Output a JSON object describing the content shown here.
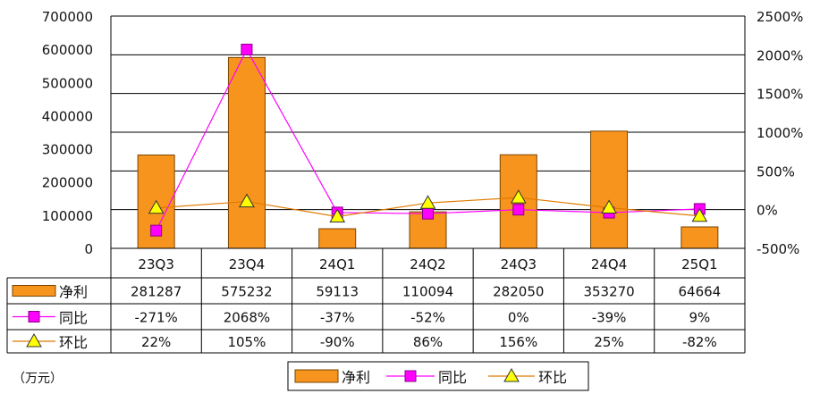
{
  "colors": {
    "bar": "#f7941d",
    "bar_stroke": "#7a4400",
    "yoy": "#ff00ff",
    "qoq": "#e07b00",
    "qoq_marker": "#ffff00"
  },
  "chart_data": {
    "type": "bar",
    "categories": [
      "23Q3",
      "23Q4",
      "24Q1",
      "24Q2",
      "24Q3",
      "24Q4",
      "25Q1"
    ],
    "series": [
      {
        "name": "净利",
        "kind": "bar",
        "axis": "left",
        "values": [
          281287,
          575232,
          59113,
          110094,
          282050,
          353270,
          64664
        ]
      },
      {
        "name": "同比",
        "kind": "line",
        "axis": "right",
        "marker": "square",
        "values": [
          -271,
          2068,
          -37,
          -52,
          0,
          -39,
          9
        ]
      },
      {
        "name": "环比",
        "kind": "line",
        "axis": "right",
        "marker": "triangle",
        "values": [
          22,
          105,
          -90,
          86,
          156,
          25,
          -82
        ]
      }
    ],
    "table": {
      "rows": [
        {
          "series": "净利",
          "cells": [
            "281287",
            "575232",
            "59113",
            "110094",
            "282050",
            "353270",
            "64664"
          ]
        },
        {
          "series": "同比",
          "cells": [
            "-271%",
            "2068%",
            "-37%",
            "-52%",
            "0%",
            "-39%",
            "9%"
          ]
        },
        {
          "series": "环比",
          "cells": [
            "22%",
            "105%",
            "-90%",
            "86%",
            "156%",
            "25%",
            "-82%"
          ]
        }
      ]
    },
    "left_axis": {
      "ylim": [
        0,
        700000
      ],
      "ticks": [
        0,
        100000,
        200000,
        300000,
        400000,
        500000,
        600000,
        700000
      ],
      "tick_labels": [
        "0",
        "100000",
        "200000",
        "300000",
        "400000",
        "500000",
        "600000",
        "700000"
      ]
    },
    "right_axis": {
      "ylim": [
        -500,
        2500
      ],
      "ticks": [
        -500,
        0,
        500,
        1000,
        1500,
        2000,
        2500
      ],
      "tick_labels": [
        "-500%",
        "0%",
        "500%",
        "1000%",
        "1500%",
        "2000%",
        "2500%"
      ]
    },
    "unit_label": "（万元）",
    "legend": {
      "placement": "bottom",
      "items": [
        "净利",
        "同比",
        "环比"
      ]
    },
    "grid": true
  }
}
